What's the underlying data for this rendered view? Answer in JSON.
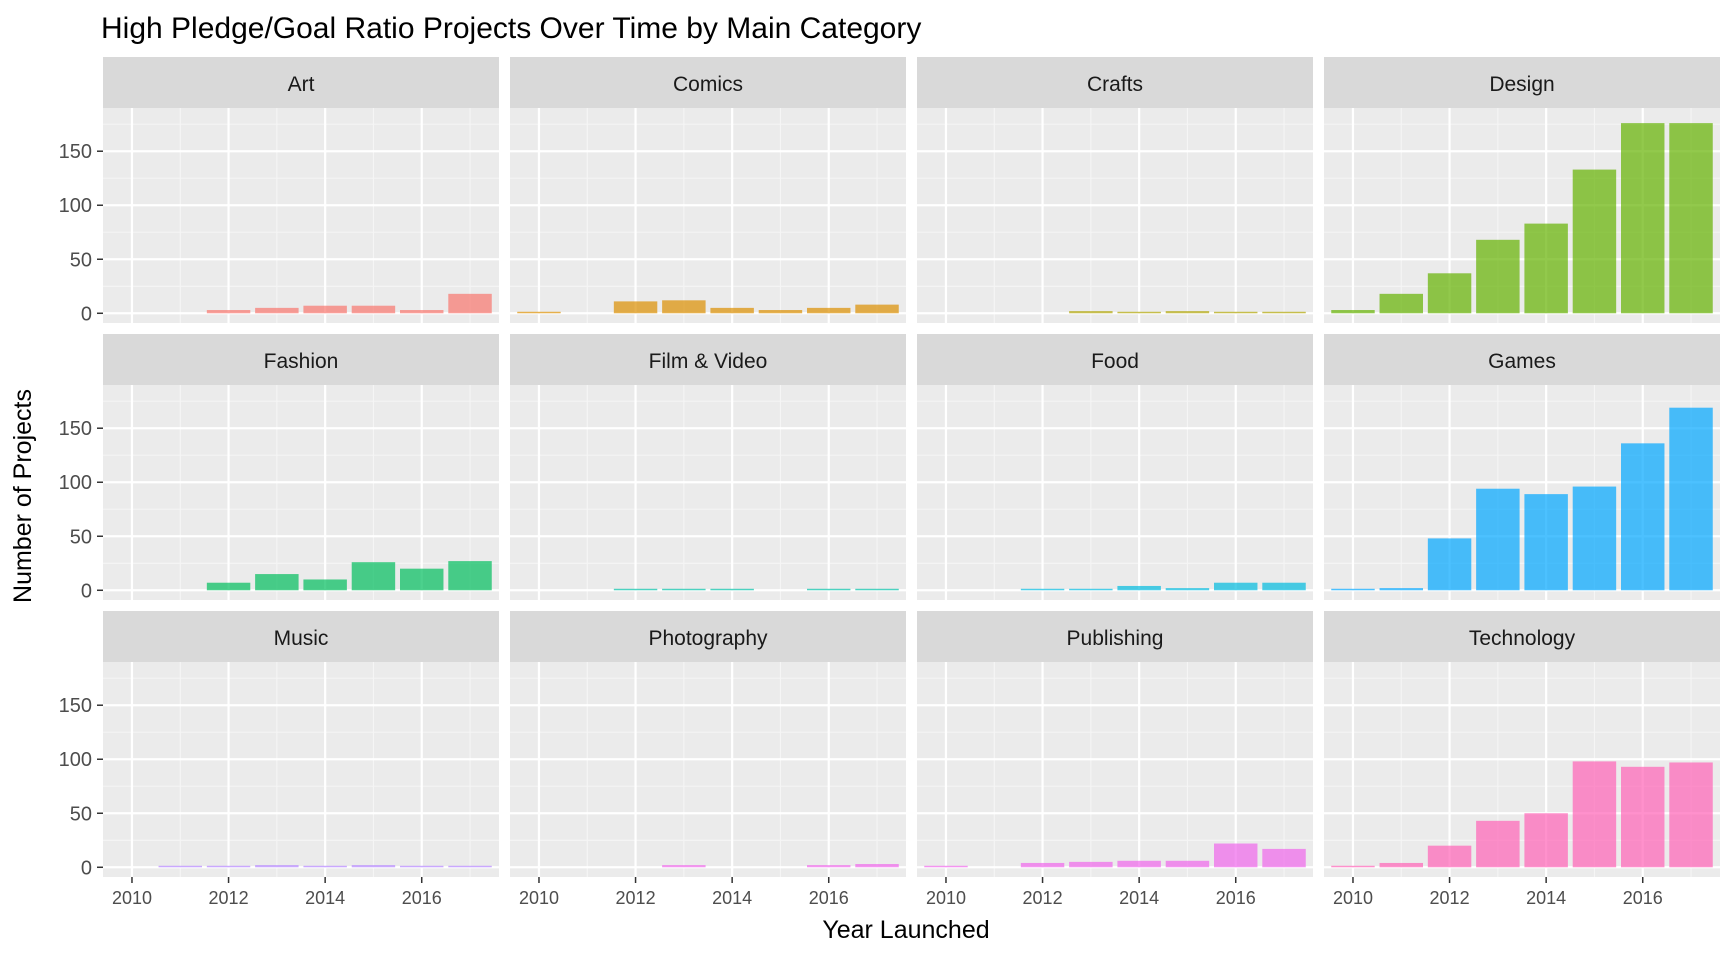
{
  "chart_data": {
    "type": "bar",
    "layout": "facet-grid",
    "title": "High Pledge/Goal Ratio Projects Over Time by Main Category",
    "xlabel": "Year Launched",
    "ylabel": "Number of Projects",
    "x": [
      2010,
      2011,
      2012,
      2013,
      2014,
      2015,
      2016,
      2017
    ],
    "x_ticks": [
      "2010",
      "2012",
      "2014",
      "2016"
    ],
    "y_ticks": [
      0,
      50,
      100,
      150
    ],
    "xlim": [
      2009.4,
      2017.6
    ],
    "ylim": [
      -9,
      190
    ],
    "grid": true,
    "facets": [
      {
        "name": "Art",
        "color": "#F8766D",
        "values": [
          0,
          0,
          3,
          5,
          7,
          7,
          3,
          18
        ]
      },
      {
        "name": "Comics",
        "color": "#DB8E00",
        "values": [
          1,
          0,
          11,
          12,
          5,
          3,
          5,
          8
        ]
      },
      {
        "name": "Crafts",
        "color": "#AEA200",
        "values": [
          0,
          0,
          0,
          2,
          1,
          2,
          1,
          1
        ]
      },
      {
        "name": "Design",
        "color": "#64B200",
        "values": [
          3,
          18,
          37,
          68,
          83,
          133,
          176,
          176
        ]
      },
      {
        "name": "Fashion",
        "color": "#00BD5C",
        "values": [
          0,
          0,
          7,
          15,
          10,
          26,
          20,
          27
        ]
      },
      {
        "name": "Film & Video",
        "color": "#00C1A7",
        "values": [
          0,
          0,
          1,
          1,
          1,
          0,
          1,
          1
        ]
      },
      {
        "name": "Food",
        "color": "#00BADE",
        "values": [
          0,
          0,
          1,
          1,
          4,
          2,
          7,
          7
        ]
      },
      {
        "name": "Games",
        "color": "#00A6FF",
        "values": [
          1,
          2,
          48,
          94,
          89,
          96,
          136,
          169
        ]
      },
      {
        "name": "Music",
        "color": "#B385FF",
        "values": [
          0,
          1,
          1,
          2,
          1,
          2,
          1,
          1
        ]
      },
      {
        "name": "Photography",
        "color": "#EF67EB",
        "values": [
          0,
          0,
          0,
          2,
          0,
          0,
          2,
          3
        ]
      },
      {
        "name": "Publishing",
        "color": "#EF67EB",
        "values": [
          1,
          0,
          4,
          5,
          6,
          6,
          22,
          17
        ]
      },
      {
        "name": "Technology",
        "color": "#FF63B6",
        "values": [
          1,
          4,
          20,
          43,
          50,
          98,
          93,
          97
        ]
      }
    ]
  }
}
